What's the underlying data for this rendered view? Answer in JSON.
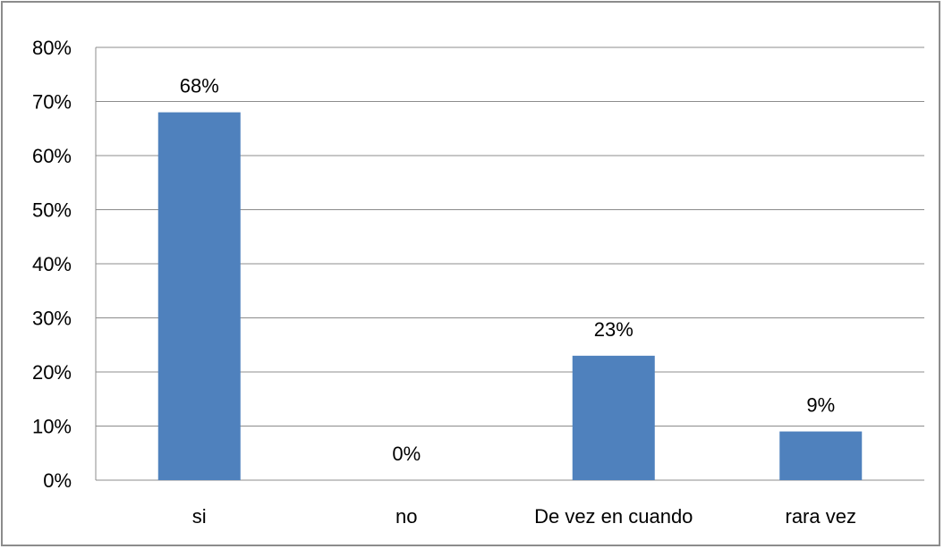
{
  "chart_data": {
    "type": "bar",
    "title": "",
    "xlabel": "",
    "ylabel": "",
    "categories": [
      "si",
      "no",
      "De vez en cuando",
      "rara vez"
    ],
    "values": [
      68,
      0,
      23,
      9
    ],
    "data_labels": [
      "68%",
      "0%",
      "23%",
      "9%"
    ],
    "ylim": [
      0,
      80
    ],
    "y_ticks": [
      0,
      10,
      20,
      30,
      40,
      50,
      60,
      70,
      80
    ],
    "y_tick_labels": [
      "0%",
      "10%",
      "20%",
      "30%",
      "40%",
      "50%",
      "60%",
      "70%",
      "80%"
    ],
    "grid": true,
    "legend": "none",
    "bar_color": "#4f81bd"
  }
}
